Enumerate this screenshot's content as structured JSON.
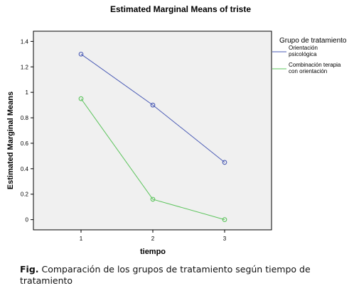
{
  "chart_data": {
    "type": "line",
    "title": "Estimated Marginal Means of triste",
    "xlabel": "tiempo",
    "ylabel": "Estimated Marginal Means",
    "categories": [
      "1",
      "2",
      "3"
    ],
    "ylim": [
      -0.08,
      1.48
    ],
    "yticks": [
      "0",
      "0.2",
      "0.4",
      "0.6",
      "0.8",
      "1",
      "1.2",
      "1.4"
    ],
    "ytick_values": [
      0,
      0.2,
      0.4,
      0.6,
      0.8,
      1.0,
      1.2,
      1.4
    ],
    "grid": false,
    "legend_position": "right",
    "legend_title": "Grupo de tratamiento",
    "series": [
      {
        "name": "Orientación psicológica",
        "name_lines": [
          "Orientación",
          "psicológica"
        ],
        "color": "#4a5bb5",
        "values": [
          1.3,
          0.9,
          0.45
        ]
      },
      {
        "name": "Combinación terapia con orientación",
        "name_lines": [
          "Combinación terapia",
          "con orientación"
        ],
        "color": "#5cc45c",
        "values": [
          0.95,
          0.16,
          0.0
        ]
      }
    ],
    "plot_background": "#f0f0f0"
  },
  "caption": {
    "label": "Fig.",
    "text": " Comparación de los grupos de tratamiento según tiempo de tratamiento"
  }
}
